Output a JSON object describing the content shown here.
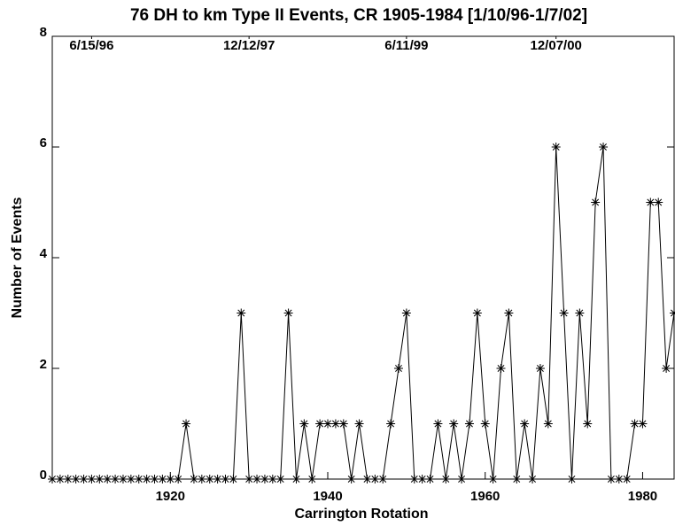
{
  "chart_data": {
    "type": "line",
    "title": "76 DH to km Type II Events, CR 1905-1984 [1/10/96-1/7/02]",
    "x_label": "Carrington Rotation",
    "y_label": "Number of Events",
    "x": [
      1905,
      1906,
      1907,
      1908,
      1909,
      1910,
      1911,
      1912,
      1913,
      1914,
      1915,
      1916,
      1917,
      1918,
      1919,
      1920,
      1921,
      1922,
      1923,
      1924,
      1925,
      1926,
      1927,
      1928,
      1929,
      1930,
      1931,
      1932,
      1933,
      1934,
      1935,
      1936,
      1937,
      1938,
      1939,
      1940,
      1941,
      1942,
      1943,
      1944,
      1945,
      1946,
      1947,
      1948,
      1949,
      1950,
      1951,
      1952,
      1953,
      1954,
      1955,
      1956,
      1957,
      1958,
      1959,
      1960,
      1961,
      1962,
      1963,
      1964,
      1965,
      1966,
      1967,
      1968,
      1969,
      1970,
      1971,
      1972,
      1973,
      1974,
      1975,
      1976,
      1977,
      1978,
      1979,
      1980,
      1981,
      1982,
      1983,
      1984
    ],
    "values": [
      0,
      0,
      0,
      0,
      0,
      0,
      0,
      0,
      0,
      0,
      0,
      0,
      0,
      0,
      0,
      0,
      0,
      1,
      0,
      0,
      0,
      0,
      0,
      0,
      3,
      0,
      0,
      0,
      0,
      0,
      3,
      0,
      1,
      0,
      1,
      1,
      1,
      1,
      0,
      1,
      0,
      0,
      0,
      1,
      2,
      3,
      0,
      0,
      0,
      1,
      0,
      1,
      0,
      1,
      3,
      1,
      0,
      2,
      3,
      0,
      1,
      0,
      2,
      1,
      6,
      3,
      0,
      3,
      1,
      5,
      6,
      0,
      0,
      0,
      1,
      1,
      5,
      5,
      2,
      3
    ],
    "color": "#000000",
    "marker": "asterisk",
    "xlim": [
      1905,
      1984
    ],
    "ylim": [
      0,
      8
    ],
    "xticks": [
      1920,
      1940,
      1960,
      1980
    ],
    "yticks": [
      0,
      2,
      4,
      6,
      8
    ],
    "top_ticks": [
      {
        "value": 1910,
        "label": "6/15/96"
      },
      {
        "value": 1930,
        "label": "12/12/97"
      },
      {
        "value": 1950,
        "label": "6/11/99"
      },
      {
        "value": 1969,
        "label": "12/07/00"
      }
    ],
    "grid": false
  }
}
